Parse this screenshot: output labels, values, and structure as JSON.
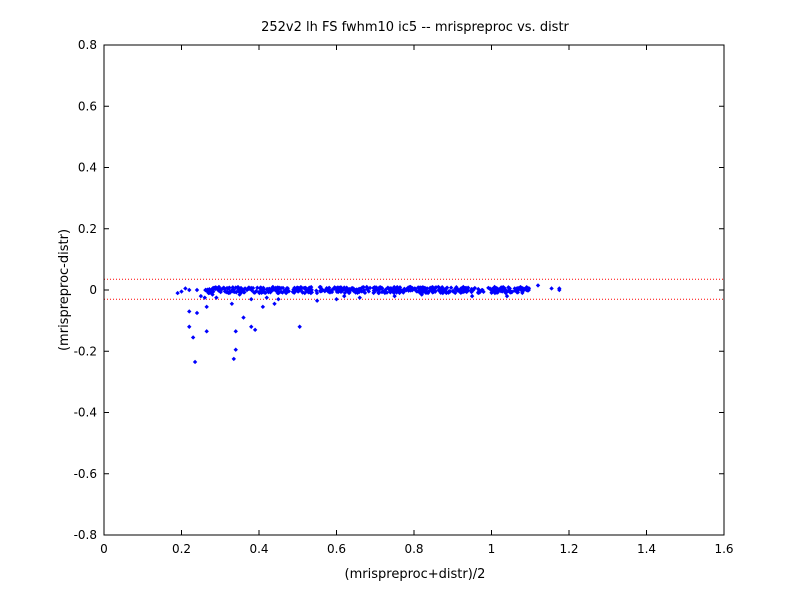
{
  "chart_data": {
    "type": "scatter",
    "title": "252v2 lh FS fwhm10 ic5 -- mrispreproc vs. distr",
    "xlabel": "(mrispreproc+distr)/2",
    "ylabel": "(mrispreproc-distr)",
    "xlim": [
      0,
      1.6
    ],
    "ylim": [
      -0.8,
      0.8
    ],
    "xticks": [
      0,
      0.2,
      0.4,
      0.6,
      0.8,
      1,
      1.2,
      1.4,
      1.6
    ],
    "xtick_labels": [
      "0",
      "0.2",
      "0.4",
      "0.6",
      "0.8",
      "1",
      "1.2",
      "1.4",
      "1.6"
    ],
    "yticks": [
      -0.8,
      -0.6,
      -0.4,
      -0.2,
      0,
      0.2,
      0.4,
      0.6,
      0.8
    ],
    "ytick_labels": [
      "-0.8",
      "-0.6",
      "-0.4",
      "-0.2",
      "0",
      "0.2",
      "0.4",
      "0.6",
      "0.8"
    ],
    "grid": false,
    "marker_color": "#0000ff",
    "reference_line_color": "#ff0000",
    "reference_lines_y": [
      0.035,
      -0.03
    ],
    "outliers": [
      {
        "x": 0.19,
        "y": -0.01
      },
      {
        "x": 0.2,
        "y": -0.005
      },
      {
        "x": 0.21,
        "y": 0.005
      },
      {
        "x": 0.22,
        "y": 0.0
      },
      {
        "x": 0.22,
        "y": -0.07
      },
      {
        "x": 0.22,
        "y": -0.12
      },
      {
        "x": 0.23,
        "y": -0.155
      },
      {
        "x": 0.235,
        "y": -0.235
      },
      {
        "x": 0.24,
        "y": -0.075
      },
      {
        "x": 0.24,
        "y": 0.0
      },
      {
        "x": 0.25,
        "y": -0.02
      },
      {
        "x": 0.26,
        "y": -0.025
      },
      {
        "x": 0.265,
        "y": -0.055
      },
      {
        "x": 0.265,
        "y": -0.135
      },
      {
        "x": 0.27,
        "y": -0.01
      },
      {
        "x": 0.28,
        "y": -0.015
      },
      {
        "x": 0.29,
        "y": -0.025
      },
      {
        "x": 0.33,
        "y": -0.045
      },
      {
        "x": 0.335,
        "y": -0.225
      },
      {
        "x": 0.34,
        "y": -0.195
      },
      {
        "x": 0.34,
        "y": -0.135
      },
      {
        "x": 0.35,
        "y": -0.015
      },
      {
        "x": 0.36,
        "y": -0.09
      },
      {
        "x": 0.38,
        "y": -0.12
      },
      {
        "x": 0.39,
        "y": -0.13
      },
      {
        "x": 0.38,
        "y": -0.03
      },
      {
        "x": 0.41,
        "y": -0.055
      },
      {
        "x": 0.42,
        "y": -0.025
      },
      {
        "x": 0.44,
        "y": -0.045
      },
      {
        "x": 0.45,
        "y": -0.03
      },
      {
        "x": 0.47,
        "y": -0.01
      },
      {
        "x": 0.505,
        "y": -0.12
      },
      {
        "x": 0.55,
        "y": -0.035
      },
      {
        "x": 0.6,
        "y": -0.03
      },
      {
        "x": 0.62,
        "y": -0.02
      },
      {
        "x": 0.66,
        "y": -0.025
      },
      {
        "x": 0.75,
        "y": -0.02
      },
      {
        "x": 0.82,
        "y": -0.015
      },
      {
        "x": 0.95,
        "y": -0.02
      },
      {
        "x": 1.04,
        "y": -0.02
      },
      {
        "x": 1.12,
        "y": 0.015
      },
      {
        "x": 1.155,
        "y": 0.005
      },
      {
        "x": 1.175,
        "y": 0.0
      },
      {
        "x": 1.175,
        "y": 0.005
      },
      {
        "x": 1.06,
        "y": 0.005
      },
      {
        "x": 1.08,
        "y": -0.005
      },
      {
        "x": 1.09,
        "y": 0.0
      },
      {
        "x": 0.29,
        "y": 0.005
      }
    ],
    "dense_band": {
      "x_range": [
        0.26,
        1.1
      ],
      "y_spread": 0.01,
      "count": 560
    }
  }
}
